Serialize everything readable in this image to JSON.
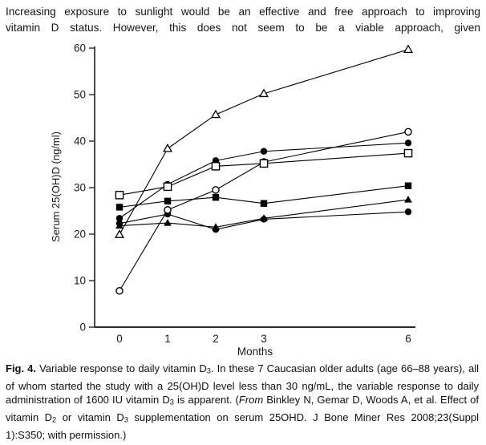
{
  "intro": {
    "lines": [
      "Increasing exposure to sunlight would be an effective and free approach to improving",
      "vitamin D status. However, this does not seem to be a viable approach, given"
    ]
  },
  "chart_data": {
    "type": "line",
    "x": [
      0,
      1,
      2,
      3,
      6
    ],
    "xlabel": "Months",
    "ylabel": "Serum 25(OH)D (ng/ml)",
    "ylim": [
      0,
      60
    ],
    "yticks": [
      0,
      10,
      20,
      30,
      40,
      50,
      60
    ],
    "grid": false,
    "legend": "none",
    "line_color": "#000000",
    "series": [
      {
        "name": "adult-1",
        "marker": "triangle-open",
        "values": [
          19.9,
          38.4,
          45.7,
          50.2,
          59.7
        ]
      },
      {
        "name": "adult-2",
        "marker": "circle-open",
        "values": [
          7.8,
          25.2,
          29.5,
          35.5,
          42.0
        ]
      },
      {
        "name": "adult-3",
        "marker": "circle-filled",
        "values": [
          23.4,
          30.7,
          35.8,
          37.8,
          39.6
        ]
      },
      {
        "name": "adult-4",
        "marker": "square-open",
        "values": [
          28.4,
          30.2,
          34.6,
          35.2,
          37.4
        ]
      },
      {
        "name": "adult-5",
        "marker": "square-filled",
        "values": [
          25.8,
          27.1,
          27.9,
          26.6,
          30.4
        ]
      },
      {
        "name": "adult-6",
        "marker": "triangle-filled",
        "values": [
          21.8,
          22.4,
          21.5,
          23.4,
          27.4
        ]
      },
      {
        "name": "adult-7",
        "marker": "circle-filled",
        "values": [
          22.3,
          24.3,
          21.0,
          23.2,
          24.8
        ]
      }
    ]
  },
  "caption": {
    "segments": [
      {
        "t": "Fig. 4.",
        "s": "b"
      },
      {
        "t": "  Variable response to daily vitamin D",
        "s": ""
      },
      {
        "t": "3",
        "s": "sub"
      },
      {
        "t": ". In these 7 Caucasian older adults (age 66–88 years), all of whom started the study with a 25(OH)D level less than 30 ng/mL, the variable response to daily administration of 1600 IU vitamin D",
        "s": ""
      },
      {
        "t": "3",
        "s": "sub"
      },
      {
        "t": " is apparent. (",
        "s": ""
      },
      {
        "t": "From",
        "s": "i"
      },
      {
        "t": " Binkley N, Gemar D, Woods A, et al. Effect of vitamin D",
        "s": ""
      },
      {
        "t": "2",
        "s": "sub"
      },
      {
        "t": " or vitamin D",
        "s": ""
      },
      {
        "t": "3",
        "s": "sub"
      },
      {
        "t": " supplementation on serum 25OHD. J Bone Miner Res 2008;23(Suppl 1):S350; with permission.)",
        "s": ""
      }
    ]
  }
}
